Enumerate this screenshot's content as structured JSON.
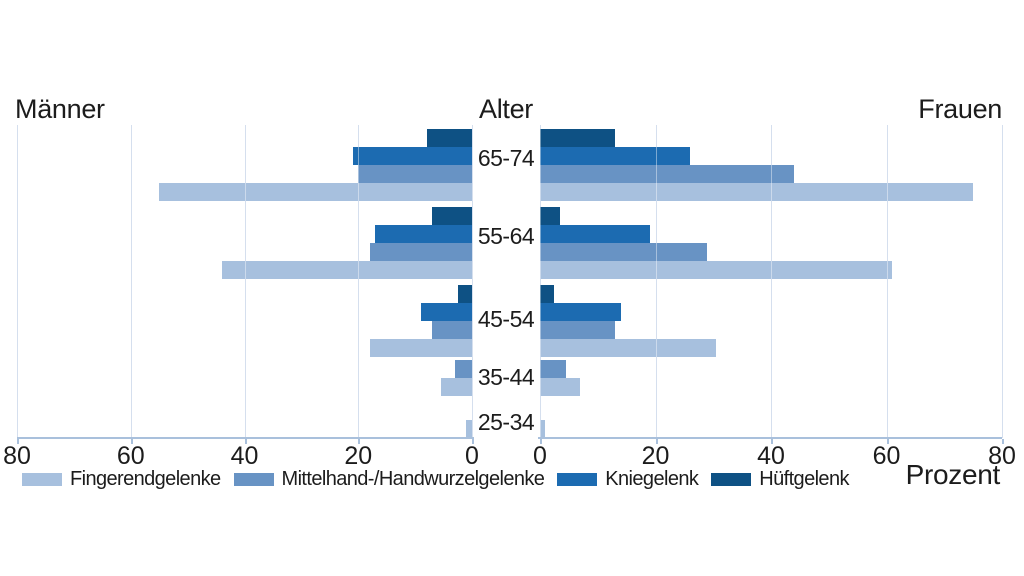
{
  "titles": {
    "left": "Männer",
    "center": "Alter",
    "right": "Frauen"
  },
  "axis": {
    "left_ticks": [
      "80",
      "60",
      "40",
      "20",
      "0"
    ],
    "right_ticks": [
      "0",
      "20",
      "40",
      "60",
      "80"
    ],
    "unit_label": "Prozent"
  },
  "colors": {
    "fingerendgelenke": "#a7c0de",
    "mittelhand_handwurzelgelenke": "#6893c4",
    "kniegelenk": "#1c6bb1",
    "hueftgelenk": "#0e5184",
    "gridline": "#b7c9e2",
    "axis_line": "#a9c0dc",
    "text": "#1c1c1c"
  },
  "chart_data": {
    "type": "bar",
    "layout": "bidirectional-pyramid",
    "left_label": "Männer",
    "right_label": "Frauen",
    "center_label": "Alter",
    "xlabel": "Prozent",
    "xlim": [
      0,
      80
    ],
    "tick_step": 20,
    "grid": true,
    "legend_position": "bottom-left",
    "age_groups": [
      "65-74",
      "55-64",
      "45-54",
      "35-44",
      "25-34"
    ],
    "bar_order_top_to_bottom": [
      "Hüftgelenk",
      "Kniegelenk",
      "Mittelhand-/Handwurzelgelenke",
      "Fingerendgelenke"
    ],
    "series": [
      {
        "name": "Fingerendgelenke",
        "color": "#a7c0de",
        "maenner": [
          55,
          44,
          18,
          5.5,
          1
        ],
        "frauen": [
          75,
          61,
          30.5,
          7,
          0.8
        ]
      },
      {
        "name": "Mittelhand-/Handwurzelgelenke",
        "color": "#6893c4",
        "maenner": [
          20,
          18,
          7,
          3,
          0
        ],
        "frauen": [
          44,
          29,
          13,
          4.5,
          0
        ]
      },
      {
        "name": "Kniegelenk",
        "color": "#1c6bb1",
        "maenner": [
          21,
          17,
          9,
          0,
          0
        ],
        "frauen": [
          26,
          19,
          14,
          0,
          0
        ]
      },
      {
        "name": "Hüftgelenk",
        "color": "#0e5184",
        "maenner": [
          8,
          7,
          2.5,
          0,
          0
        ],
        "frauen": [
          13,
          3.5,
          2.5,
          0,
          0
        ]
      }
    ]
  }
}
